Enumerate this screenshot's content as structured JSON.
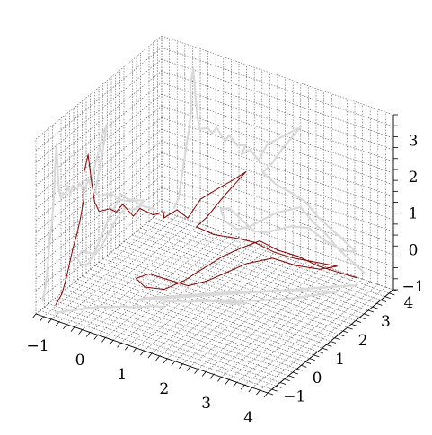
{
  "chart_data": {
    "type": "line3d",
    "title": "",
    "xlabel": "",
    "ylabel": "",
    "zlabel": "",
    "xlim": [
      -1.3,
      4.2
    ],
    "ylim": [
      -1.3,
      4.2
    ],
    "zlim": [
      -1.1,
      3.7
    ],
    "x_ticks": [
      -1,
      0,
      1,
      2,
      3,
      4
    ],
    "y_ticks": [
      -1,
      0,
      1,
      2,
      3,
      4
    ],
    "z_ticks": [
      -1,
      0,
      1,
      2,
      3
    ],
    "grid": true,
    "grid_style": "dotted",
    "colors": {
      "trajectory": "#8b0000",
      "projection": "#d3d3d3",
      "grid": "#555555"
    },
    "projections": [
      "xz-plane",
      "yz-plane",
      "xy-plane"
    ],
    "series": [
      {
        "points": [
          [
            -1.0,
            -1.0,
            -0.9
          ],
          [
            -0.9,
            -0.9,
            -0.6
          ],
          [
            -0.85,
            -0.8,
            -0.2
          ],
          [
            -0.8,
            -0.75,
            0.2
          ],
          [
            -0.75,
            -0.7,
            0.6
          ],
          [
            -0.7,
            -0.6,
            1.0
          ],
          [
            -0.65,
            -0.55,
            1.4
          ],
          [
            -0.6,
            -0.5,
            1.9
          ],
          [
            -0.62,
            -0.45,
            2.6
          ],
          [
            -0.55,
            -0.4,
            3.1
          ],
          [
            -0.5,
            -0.35,
            2.4
          ],
          [
            -0.45,
            -0.3,
            1.8
          ],
          [
            -0.4,
            -0.2,
            1.5
          ],
          [
            -0.2,
            -0.1,
            1.6
          ],
          [
            -0.1,
            0.0,
            1.5
          ],
          [
            0.0,
            0.1,
            1.7
          ],
          [
            0.2,
            0.2,
            1.4
          ],
          [
            0.3,
            0.3,
            1.6
          ],
          [
            0.5,
            0.5,
            1.4
          ],
          [
            0.7,
            0.6,
            1.5
          ],
          [
            0.6,
            0.8,
            1.2
          ],
          [
            0.8,
            1.0,
            1.4
          ],
          [
            1.0,
            1.1,
            1.2
          ],
          [
            1.2,
            1.3,
            1.7
          ],
          [
            1.5,
            1.5,
            2.0
          ],
          [
            1.8,
            1.6,
            2.3
          ],
          [
            2.0,
            1.8,
            2.5
          ],
          [
            1.6,
            1.6,
            1.8
          ],
          [
            1.3,
            1.4,
            1.2
          ],
          [
            1.1,
            1.3,
            0.9
          ],
          [
            1.4,
            1.5,
            0.7
          ],
          [
            1.8,
            1.8,
            0.6
          ],
          [
            2.1,
            2.0,
            0.5
          ],
          [
            2.4,
            2.3,
            0.2
          ],
          [
            2.7,
            2.6,
            0.0
          ],
          [
            3.0,
            3.0,
            -0.2
          ],
          [
            3.3,
            3.4,
            -0.4
          ],
          [
            3.0,
            3.2,
            -0.5
          ],
          [
            2.6,
            2.9,
            -0.4
          ],
          [
            2.2,
            2.6,
            -0.2
          ],
          [
            1.8,
            2.2,
            -0.3
          ],
          [
            1.5,
            1.9,
            -0.5
          ],
          [
            1.2,
            1.6,
            -0.7
          ],
          [
            0.9,
            1.3,
            -0.8
          ],
          [
            0.6,
            1.0,
            -0.6
          ],
          [
            0.3,
            0.7,
            -0.4
          ],
          [
            0.1,
            0.5,
            -0.5
          ],
          [
            0.2,
            0.7,
            -0.8
          ],
          [
            0.5,
            1.0,
            -0.9
          ],
          [
            0.8,
            1.3,
            -0.7
          ],
          [
            1.1,
            1.6,
            -0.4
          ],
          [
            1.4,
            1.9,
            -0.1
          ],
          [
            1.7,
            2.2,
            0.1
          ],
          [
            2.0,
            2.4,
            0.3
          ],
          [
            2.3,
            2.7,
            0.0
          ],
          [
            2.6,
            3.0,
            -0.2
          ],
          [
            2.9,
            3.3,
            -0.5
          ],
          [
            3.2,
            3.6,
            -0.7
          ],
          [
            3.5,
            3.9,
            -0.9
          ]
        ]
      }
    ]
  }
}
